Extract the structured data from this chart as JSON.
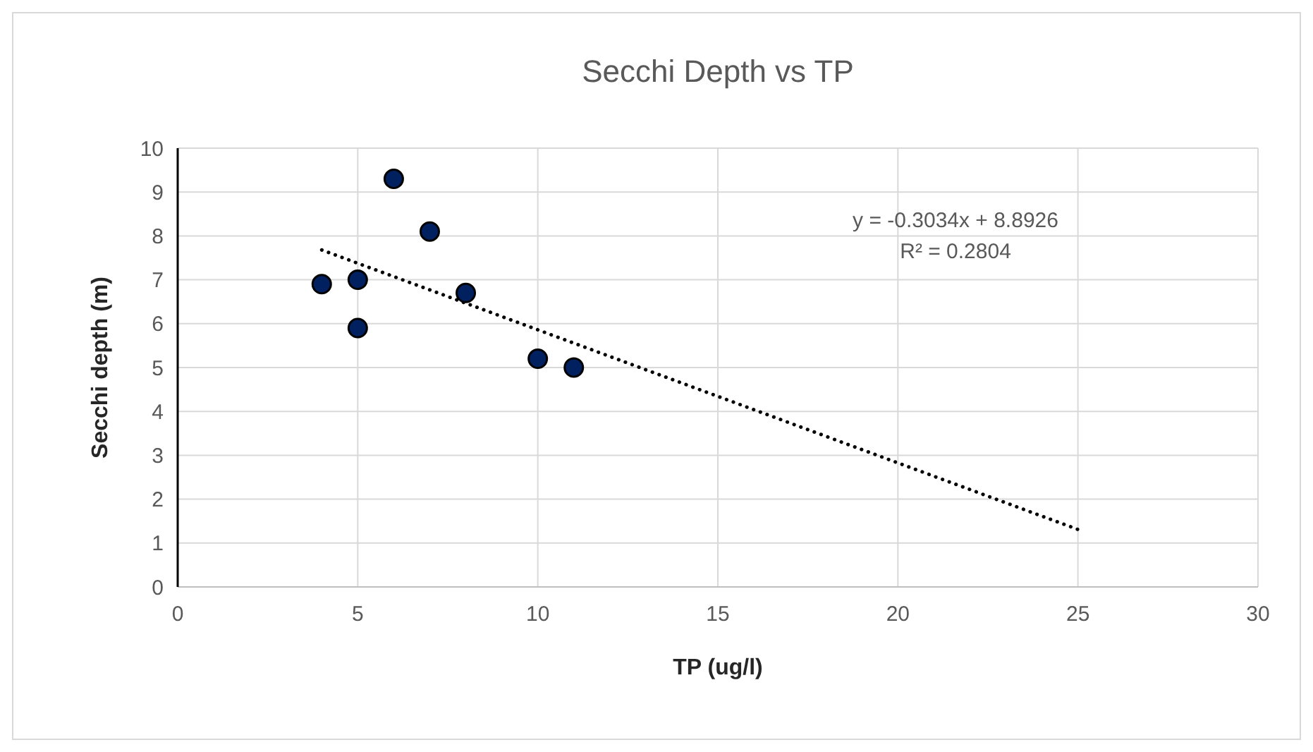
{
  "chart_data": {
    "type": "scatter",
    "title": "Secchi Depth vs TP",
    "xlabel": "TP (ug/l)",
    "ylabel": "Secchi depth (m)",
    "xlim": [
      0,
      30
    ],
    "xticks": [
      0,
      5,
      10,
      15,
      20,
      25,
      30
    ],
    "ylim": [
      0,
      10
    ],
    "yticks": [
      0,
      1,
      2,
      3,
      4,
      5,
      6,
      7,
      8,
      9,
      10
    ],
    "grid": true,
    "series": [
      {
        "color": "#002060",
        "marker": "circle",
        "x": [
          4,
          5,
          5,
          6,
          7,
          8,
          10,
          11
        ],
        "values": [
          6.9,
          7.0,
          5.9,
          9.3,
          8.1,
          6.7,
          5.2,
          5.0
        ]
      },
      {
        "type": "line",
        "color": "#000000",
        "line_style": "dotted",
        "marker": "none",
        "x": [
          4,
          25
        ],
        "values": [
          7.68,
          1.31
        ]
      }
    ],
    "annotations": [
      "y = -0.3034x + 8.8926",
      "R² = 0.2804"
    ]
  }
}
